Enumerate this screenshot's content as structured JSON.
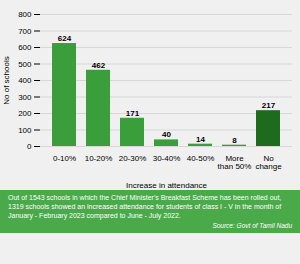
{
  "chart_data": {
    "type": "bar",
    "categories": [
      "0-10%",
      "10-20%",
      "20-30%",
      "30-40%",
      "40-50%",
      "More\nthan 50%",
      "No\nchange"
    ],
    "values": [
      624,
      462,
      171,
      40,
      14,
      8,
      217
    ],
    "colors": [
      "#3a9e3a",
      "#3a9e3a",
      "#3a9e3a",
      "#3a9e3a",
      "#3a9e3a",
      "#3a9e3a",
      "#1e6b1e"
    ],
    "xlabel": "Increase in attendance",
    "ylabel": "No of schools",
    "ylim": [
      0,
      800
    ],
    "yticks": [
      0,
      100,
      200,
      300,
      400,
      500,
      600,
      700,
      800
    ],
    "grid": true,
    "data_labels": true,
    "annotations": [
      "Out of 1543 schools in which the Chief Minister's Breakfast Scheme has been rolled out,\n1319 schools showed an increased attendance for students of class I - V in the month of\nJanuary - February 2023 compared to June - July 2022.",
      "Source: Govt of Tamil Nadu"
    ]
  }
}
